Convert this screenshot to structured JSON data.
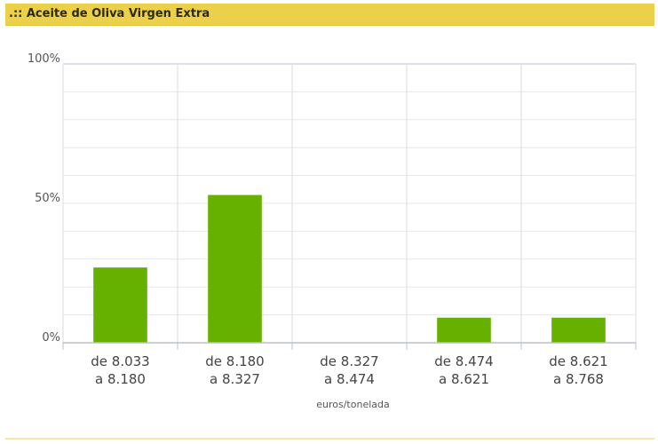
{
  "panel": {
    "title": ".:: Aceite de Oliva Virgen Extra",
    "header_color": "#ecd04a"
  },
  "chart_data": {
    "type": "bar",
    "title": ".:: Aceite de Oliva Virgen Extra",
    "xlabel": "euros/tonelada",
    "ylabel": "",
    "categories": [
      [
        "de 8.033",
        "a 8.180"
      ],
      [
        "de 8.180",
        "a 8.327"
      ],
      [
        "de 8.327",
        "a 8.474"
      ],
      [
        "de 8.474",
        "a 8.621"
      ],
      [
        "de 8.621",
        "a 8.768"
      ]
    ],
    "values": [
      27,
      53,
      0,
      9,
      9
    ],
    "ylim": [
      0,
      100
    ],
    "yticks": [
      {
        "value": 0,
        "label": "0%"
      },
      {
        "value": 50,
        "label": "50%"
      },
      {
        "value": 100,
        "label": "100%"
      }
    ],
    "grid": true,
    "bar_color": "#66b100",
    "legend": "none"
  }
}
